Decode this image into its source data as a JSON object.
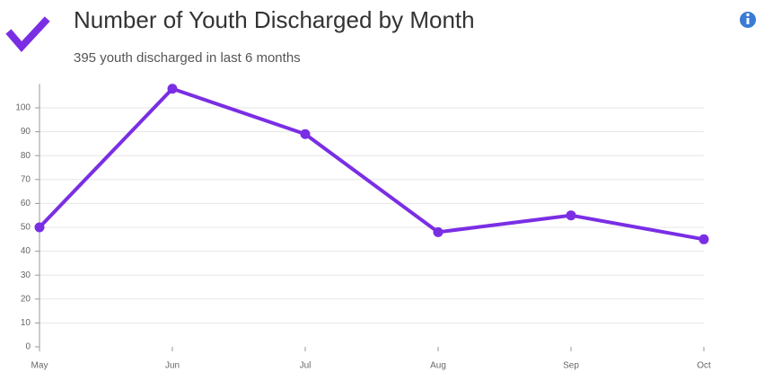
{
  "chart_data": {
    "type": "line",
    "title": "Number of Youth Discharged by Month",
    "subtitle": "395 youth discharged in last 6 months",
    "categories": [
      "May",
      "Jun",
      "Jul",
      "Aug",
      "Sep",
      "Oct"
    ],
    "series": [
      {
        "name": "Youth Discharged",
        "color": "#7a2ee4",
        "values": [
          50,
          108,
          89,
          48,
          55,
          45
        ]
      }
    ],
    "ylim": [
      0,
      110
    ],
    "yticks": [
      0,
      10,
      20,
      30,
      40,
      50,
      60,
      70,
      80,
      90,
      100
    ],
    "grid": true
  }
}
